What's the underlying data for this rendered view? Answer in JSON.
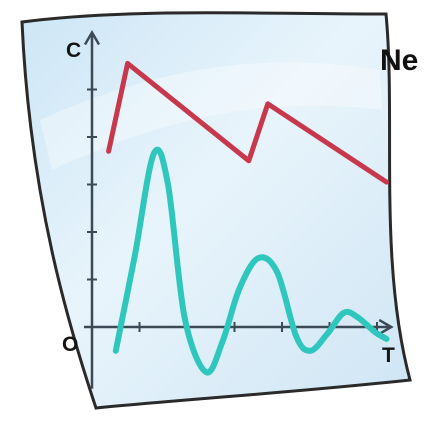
{
  "header_fragment": "Ne",
  "chart_data": {
    "type": "line",
    "title": "",
    "xlabel": "T",
    "ylabel": "C",
    "origin_label": "O",
    "xlim": [
      0,
      6.3
    ],
    "ylim": [
      -1.3,
      6.2
    ],
    "grid": false,
    "legend": "none",
    "series": [
      {
        "color": "#c8384d",
        "x": [
          0.35,
          0.75,
          3.3,
          3.7,
          6.2
        ],
        "y": [
          3.7,
          5.55,
          3.5,
          4.7,
          3.05
        ]
      },
      {
        "color": "#2fc7bd",
        "x": [
          0.5,
          0.9,
          1.3,
          1.6,
          1.95,
          2.4,
          2.75,
          3.1,
          3.5,
          3.9,
          4.3,
          4.6,
          4.95,
          5.3,
          5.6,
          5.95,
          6.2
        ],
        "y": [
          -0.5,
          1.5,
          3.65,
          3.0,
          0.2,
          -0.95,
          -0.3,
          0.8,
          1.45,
          1.15,
          -0.2,
          -0.5,
          -0.15,
          0.3,
          0.2,
          -0.1,
          -0.25
        ]
      }
    ]
  },
  "colors": {
    "paper": "#dcecf7",
    "paper_edge": "#2a2a2a",
    "axis": "#3c4a55",
    "label": "#151515"
  }
}
